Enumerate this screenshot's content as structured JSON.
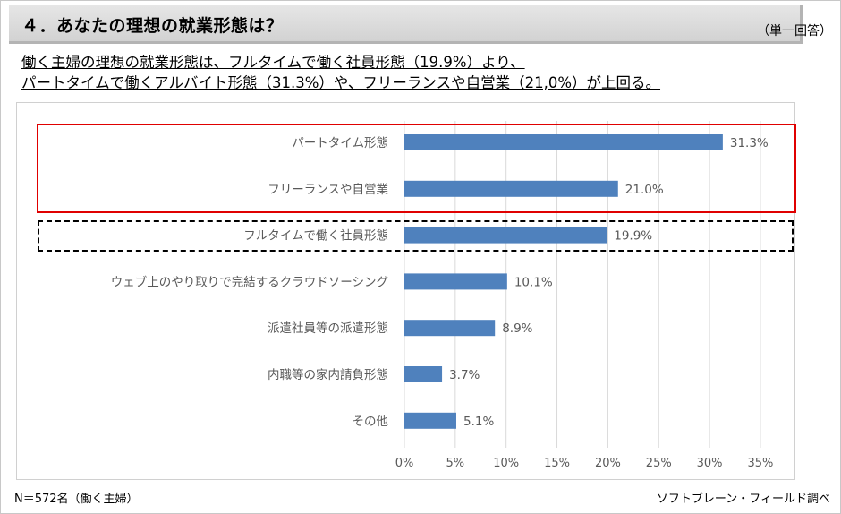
{
  "header": {
    "title": "４．あなたの理想の就業形態は？",
    "answer_type": "（単一回答）"
  },
  "summary": {
    "line1": "働く主婦の理想の就業形態は、フルタイムで働く社員形態（19.9%）より、",
    "line2": "パートタイムで働くアルバイト形態（31.3%）や、フリーランスや自営業（21,0%）が上回る。"
  },
  "footer": {
    "sample": "N＝572名（働く主婦）",
    "source": "ソフトブレーン・フィールド調べ"
  },
  "colors": {
    "bar": "#4F81BD",
    "highlight_solid": "#E00000",
    "highlight_dashed": "#000000"
  },
  "chart_data": {
    "type": "bar",
    "orientation": "horizontal",
    "categories": [
      "パートタイム形態",
      "フリーランスや自営業",
      "フルタイムで働く社員形態",
      "ウェブ上のやり取りで完結するクラウドソーシング",
      "派遣社員等の派遣形態",
      "内職等の家内請負形態",
      "その他"
    ],
    "values": [
      31.3,
      21.0,
      19.9,
      10.1,
      8.9,
      3.7,
      5.1
    ],
    "value_labels": [
      "31.3%",
      "21.0%",
      "19.9%",
      "10.1%",
      "8.9%",
      "3.7%",
      "5.1%"
    ],
    "x_ticks": [
      "0%",
      "5%",
      "10%",
      "15%",
      "20%",
      "25%",
      "30%",
      "35%"
    ],
    "xlim": [
      0,
      35
    ],
    "grid": true,
    "title": "",
    "xlabel": "",
    "ylabel": ""
  }
}
